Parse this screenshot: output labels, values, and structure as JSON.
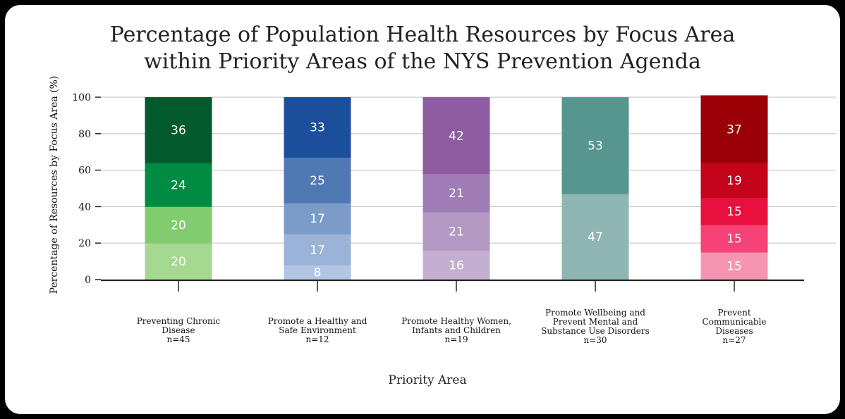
{
  "chart_data": {
    "type": "stacked-bar",
    "title": [
      "Percentage of Population Health Resources by Focus Area",
      "within Priority Areas of the NYS Prevention Agenda"
    ],
    "xlabel": "Priority Area",
    "ylabel": "Percentage of Resources by Focus Area (%)",
    "ylim": [
      0,
      100
    ],
    "yticks": [
      "0",
      "20",
      "40",
      "60",
      "80",
      "100"
    ],
    "grid": true,
    "categories": [
      {
        "label": [
          "Preventing Chronic",
          "Disease",
          "n=45"
        ],
        "segments": [
          {
            "value": 20,
            "label": "20",
            "color": "#a5d890"
          },
          {
            "value": 20,
            "label": "20",
            "color": "#81cc6e"
          },
          {
            "value": 24,
            "label": "24",
            "color": "#008b43"
          },
          {
            "value": 36,
            "label": "36",
            "color": "#005a2b"
          }
        ]
      },
      {
        "label": [
          "Promote a Healthy and",
          "Safe Environment",
          "n=12"
        ],
        "segments": [
          {
            "value": 8,
            "label": "8",
            "color": "#b2c6e3"
          },
          {
            "value": 17,
            "label": "17",
            "color": "#9bb3d7"
          },
          {
            "value": 17,
            "label": "17",
            "color": "#7b9bc8"
          },
          {
            "value": 25,
            "label": "25",
            "color": "#5079b4"
          },
          {
            "value": 33,
            "label": "33",
            "color": "#1b4f9b"
          }
        ]
      },
      {
        "label": [
          "Promote Healthy Women,",
          "Infants and Children",
          "n=19"
        ],
        "segments": [
          {
            "value": 16,
            "label": "16",
            "color": "#c4afd2"
          },
          {
            "value": 21,
            "label": "21",
            "color": "#b398c4"
          },
          {
            "value": 21,
            "label": "21",
            "color": "#a07db7"
          },
          {
            "value": 42,
            "label": "42",
            "color": "#8e5aa0"
          }
        ]
      },
      {
        "label": [
          "Promote Wellbeing and",
          "Prevent Mental and",
          "Substance Use Disorders",
          "n=30"
        ],
        "segments": [
          {
            "value": 47,
            "label": "47",
            "color": "#8fb6b2"
          },
          {
            "value": 53,
            "label": "53",
            "color": "#56968f"
          }
        ]
      },
      {
        "label": [
          "Prevent",
          "Communicable",
          "Diseases",
          "n=27"
        ],
        "segments": [
          {
            "value": 15,
            "label": "15",
            "color": "#f595b2"
          },
          {
            "value": 15,
            "label": "15",
            "color": "#f54277"
          },
          {
            "value": 15,
            "label": "15",
            "color": "#e8103d"
          },
          {
            "value": 19,
            "label": "19",
            "color": "#c3041b"
          },
          {
            "value": 37,
            "label": "37",
            "color": "#9b0007"
          }
        ]
      }
    ]
  }
}
